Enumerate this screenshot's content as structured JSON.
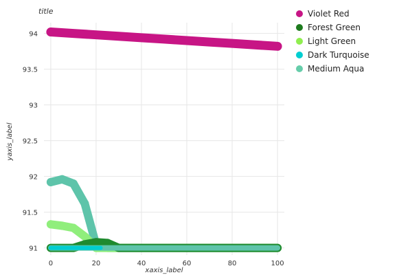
{
  "chart_data": {
    "type": "line",
    "title": "title",
    "xlabel": "xaxis_label",
    "ylabel": "yaxis_label",
    "xlim": [
      -3,
      103
    ],
    "ylim": [
      90.9,
      94.15
    ],
    "xticks": [
      0,
      20,
      40,
      60,
      80,
      100
    ],
    "yticks": [
      91,
      91.5,
      92,
      92.5,
      93,
      93.5,
      94
    ],
    "ytick_labels": [
      "91",
      "91.5",
      "92",
      "92.5",
      "93",
      "93.5",
      "94"
    ],
    "grid": true,
    "legend_position": "right",
    "x": [
      0,
      10,
      20,
      30,
      40,
      50,
      60,
      70,
      80,
      90,
      100
    ],
    "series": [
      {
        "name": "Violet Red",
        "color": "#c71585",
        "values": [
          94.02,
          94.0,
          93.98,
          93.96,
          93.94,
          93.92,
          93.9,
          93.88,
          93.86,
          93.84,
          93.82
        ]
      },
      {
        "name": "Forest Green",
        "color": "#1e7b1e",
        "values": [
          91.0,
          91.0,
          91.0,
          91.0,
          91.0,
          91.0,
          91.0,
          91.0,
          91.0,
          91.0,
          91.0
        ]
      },
      {
        "name": "Light Green",
        "color": "#90ee50",
        "values": [
          91.0,
          91.0,
          91.0,
          91.0,
          91.0,
          91.0,
          91.0,
          91.0,
          91.0,
          91.0,
          91.0
        ]
      },
      {
        "name": "Dark Turquoise",
        "color": "#00ced1",
        "values": [
          91.0,
          91.0,
          91.0,
          91.0,
          91.0,
          91.0,
          91.0,
          91.0,
          91.0,
          91.0,
          91.0
        ]
      },
      {
        "name": "Medium Aqua",
        "color": "#66cdaa",
        "values": [
          91.0,
          91.0,
          91.0,
          91.0,
          91.0,
          91.0,
          91.0,
          91.0,
          91.0,
          91.0,
          91.0
        ]
      }
    ],
    "area_series": [
      {
        "name": "Medium Aqua",
        "color": "#5ec4aa",
        "x": [
          0,
          5,
          10,
          15,
          20,
          25,
          30,
          35,
          40,
          45,
          50,
          55,
          60,
          65,
          70,
          75,
          80,
          85,
          90,
          95,
          100
        ],
        "values": [
          91.92,
          91.96,
          91.9,
          91.62,
          91.04,
          91.0,
          91.0,
          91.0,
          91.0,
          91.0,
          91.0,
          91.0,
          91.0,
          91.0,
          91.0,
          91.0,
          91.0,
          91.0,
          91.0,
          91.0,
          91.0
        ]
      },
      {
        "name": "Light Green",
        "color": "#90ee7c",
        "x": [
          0,
          5,
          10,
          15,
          20,
          25,
          30,
          35,
          40,
          45,
          50,
          55,
          60,
          65,
          70,
          75,
          80,
          85,
          90,
          95,
          100
        ],
        "values": [
          91.33,
          91.31,
          91.28,
          91.16,
          91.0,
          91.0,
          91.0,
          91.0,
          91.0,
          91.0,
          91.0,
          91.0,
          91.0,
          91.0,
          91.0,
          91.0,
          91.0,
          91.0,
          91.0,
          91.0,
          91.0
        ]
      },
      {
        "name": "Forest Green",
        "color": "#1f8a2e",
        "x": [
          0,
          5,
          10,
          15,
          20,
          25,
          30,
          35,
          40,
          45,
          50,
          55,
          60,
          65,
          70,
          75,
          80,
          85,
          90,
          95,
          100
        ],
        "values": [
          91.0,
          91.0,
          91.0,
          91.05,
          91.08,
          91.07,
          91.0,
          91.0,
          91.0,
          91.0,
          91.0,
          91.0,
          91.0,
          91.0,
          91.0,
          91.0,
          91.0,
          91.0,
          91.0,
          91.0,
          91.0
        ]
      }
    ],
    "legend": [
      "Violet Red",
      "Forest Green",
      "Light Green",
      "Dark Turquoise",
      "Medium Aqua"
    ]
  }
}
